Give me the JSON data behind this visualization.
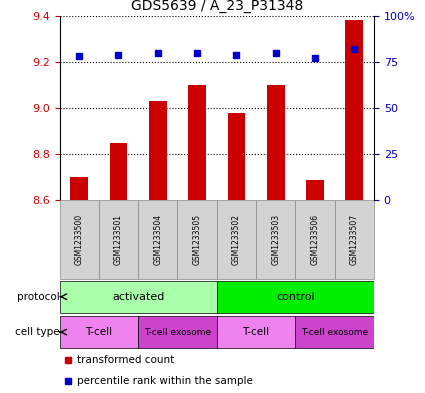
{
  "title": "GDS5639 / A_23_P31348",
  "samples": [
    "GSM1233500",
    "GSM1233501",
    "GSM1233504",
    "GSM1233505",
    "GSM1233502",
    "GSM1233503",
    "GSM1233506",
    "GSM1233507"
  ],
  "bar_values": [
    8.7,
    8.85,
    9.03,
    9.1,
    8.98,
    9.1,
    8.69,
    9.38
  ],
  "percentile_values": [
    78,
    79,
    80,
    80,
    79,
    80,
    77,
    82
  ],
  "ylim_left": [
    8.6,
    9.4
  ],
  "ylim_right": [
    0,
    100
  ],
  "yticks_left": [
    8.6,
    8.8,
    9.0,
    9.2,
    9.4
  ],
  "yticks_right": [
    0,
    25,
    50,
    75,
    100
  ],
  "ytick_labels_right": [
    "0",
    "25",
    "50",
    "75",
    "100%"
  ],
  "bar_color": "#cc0000",
  "dot_color": "#0000cc",
  "protocol_groups": [
    {
      "label": "activated",
      "start": 0,
      "end": 4,
      "color": "#aaffaa"
    },
    {
      "label": "control",
      "start": 4,
      "end": 8,
      "color": "#00ee00"
    }
  ],
  "cell_type_groups": [
    {
      "label": "T-cell",
      "start": 0,
      "end": 2,
      "color": "#ee82ee"
    },
    {
      "label": "T-cell exosome",
      "start": 2,
      "end": 4,
      "color": "#cc44cc"
    },
    {
      "label": "T-cell",
      "start": 4,
      "end": 6,
      "color": "#ee82ee"
    },
    {
      "label": "T-cell exosome",
      "start": 6,
      "end": 8,
      "color": "#cc44cc"
    }
  ],
  "legend_bar_color": "#cc0000",
  "legend_dot_color": "#0000cc",
  "legend_label_bar": "transformed count",
  "legend_label_dot": "percentile rank within the sample",
  "tick_color_left": "#cc0000",
  "tick_color_right": "#0000cc",
  "sample_area_color": "#d3d3d3",
  "sample_area_border": "#888888"
}
